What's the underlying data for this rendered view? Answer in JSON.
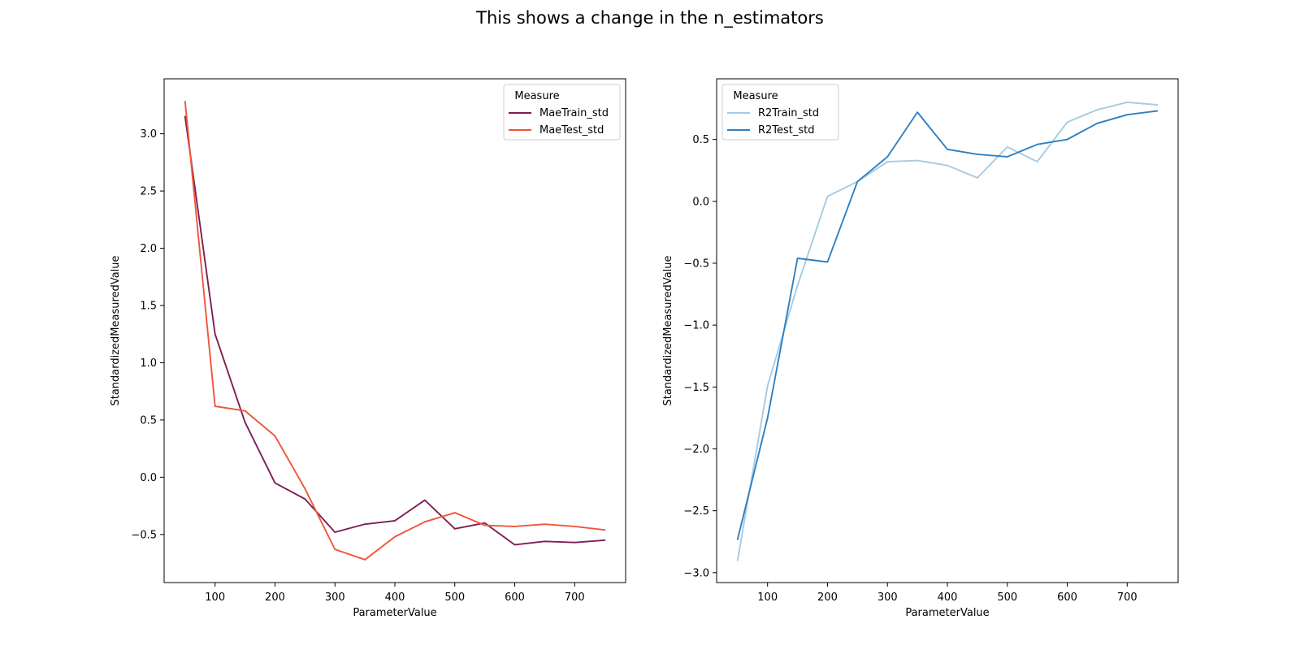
{
  "figure": {
    "title": "This shows a change in the n_estimators"
  },
  "chart_data": [
    {
      "type": "line",
      "xlabel": "ParameterValue",
      "ylabel": "StandardizedMeasuredValue",
      "xlim": [
        15,
        785
      ],
      "ylim": [
        -0.92,
        3.48
      ],
      "xticks": [
        100,
        200,
        300,
        400,
        500,
        600,
        700
      ],
      "yticks": [
        -0.5,
        0.0,
        0.5,
        1.0,
        1.5,
        2.0,
        2.5,
        3.0
      ],
      "ytick_labels": [
        "−0.5",
        "0.0",
        "0.5",
        "1.0",
        "1.5",
        "2.0",
        "2.5",
        "3.0"
      ],
      "grid": false,
      "legend": {
        "title": "Measure",
        "position": "upper right"
      },
      "x": [
        50,
        100,
        150,
        200,
        250,
        300,
        350,
        400,
        450,
        500,
        550,
        600,
        650,
        700,
        750
      ],
      "series": [
        {
          "name": "MaeTrain_std",
          "color": "#7e1e55",
          "values": [
            3.15,
            1.25,
            0.48,
            -0.05,
            -0.19,
            -0.48,
            -0.41,
            -0.38,
            -0.2,
            -0.45,
            -0.4,
            -0.59,
            -0.56,
            -0.57,
            -0.55
          ]
        },
        {
          "name": "MaeTest_std",
          "color": "#f0553a",
          "values": [
            3.28,
            0.62,
            0.58,
            0.36,
            -0.1,
            -0.63,
            -0.72,
            -0.52,
            -0.39,
            -0.31,
            -0.42,
            -0.43,
            -0.41,
            -0.43,
            -0.46
          ]
        }
      ]
    },
    {
      "type": "line",
      "xlabel": "ParameterValue",
      "ylabel": "StandardizedMeasuredValue",
      "xlim": [
        15,
        785
      ],
      "ylim": [
        -3.08,
        0.99
      ],
      "xticks": [
        100,
        200,
        300,
        400,
        500,
        600,
        700
      ],
      "yticks": [
        -3.0,
        -2.5,
        -2.0,
        -1.5,
        -1.0,
        -0.5,
        0.0,
        0.5
      ],
      "ytick_labels": [
        "−3.0",
        "−2.5",
        "−2.0",
        "−1.5",
        "−1.0",
        "−0.5",
        "0.0",
        "0.5"
      ],
      "grid": false,
      "legend": {
        "title": "Measure",
        "position": "upper left"
      },
      "x": [
        50,
        100,
        150,
        200,
        250,
        300,
        350,
        400,
        450,
        500,
        550,
        600,
        650,
        700,
        750
      ],
      "series": [
        {
          "name": "R2Train_std",
          "color": "#a6cbe4",
          "values": [
            -2.9,
            -1.49,
            -0.68,
            0.04,
            0.16,
            0.32,
            0.33,
            0.29,
            0.19,
            0.44,
            0.32,
            0.64,
            0.74,
            0.8,
            0.78
          ]
        },
        {
          "name": "R2Test_std",
          "color": "#2f80c0",
          "values": [
            -2.73,
            -1.75,
            -0.46,
            -0.49,
            0.16,
            0.36,
            0.72,
            0.42,
            0.38,
            0.36,
            0.46,
            0.5,
            0.63,
            0.7,
            0.73
          ]
        }
      ]
    }
  ]
}
